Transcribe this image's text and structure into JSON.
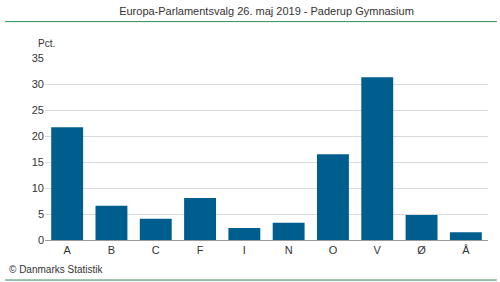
{
  "chart_data": {
    "type": "bar",
    "title": "Europa-Parlamentsvalg 26. maj 2019 - Paderup Gymnasium",
    "y_label": "Pct.",
    "annotations": [
      "© Danmarks Statistik"
    ],
    "categories": [
      "A",
      "B",
      "C",
      "F",
      "I",
      "N",
      "O",
      "V",
      "Ø",
      "Å"
    ],
    "values": [
      21.7,
      6.6,
      4.1,
      8.1,
      2.3,
      3.3,
      16.5,
      31.3,
      4.8,
      1.5
    ],
    "color": "#005e8f",
    "ylim": [
      0,
      35
    ],
    "yticks": [
      0,
      5,
      10,
      15,
      20,
      25,
      30,
      35
    ],
    "grid": true
  }
}
